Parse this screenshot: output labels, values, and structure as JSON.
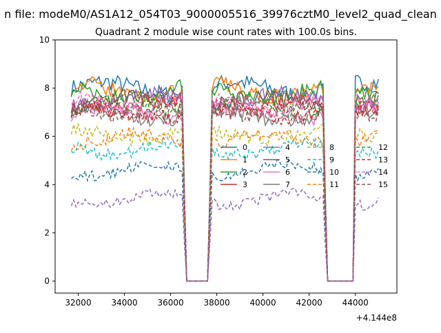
{
  "chart_data": {
    "type": "line",
    "suptitle": "n file: modeM0/AS1A12_054T03_9000005516_39976cztM0_level2_quad_clean",
    "title": "Quadrant 2 module wise count rates with 100.0s bins.",
    "xlabel": "",
    "ylabel": "",
    "x_offset_label": "+4.144e8",
    "xlim": [
      31000,
      45800
    ],
    "ylim": [
      -0.5,
      10
    ],
    "x_ticks": [
      32000,
      34000,
      36000,
      38000,
      40000,
      42000,
      44000
    ],
    "x_tick_labels": [
      "32000",
      "34000",
      "36000",
      "38000",
      "40000",
      "42000",
      "44000"
    ],
    "y_ticks": [
      0,
      2,
      4,
      6,
      8,
      10
    ],
    "y_tick_labels": [
      "0",
      "2",
      "4",
      "6",
      "8",
      "10"
    ],
    "grid": false,
    "legend": {
      "placement": "center-right",
      "columns": 4
    },
    "x_start": 31700,
    "bin_width": 100,
    "segments": [
      [
        31700,
        36500
      ],
      [
        37800,
        42600
      ],
      [
        44000,
        45000
      ]
    ],
    "gaps": [
      [
        36700,
        37600
      ],
      [
        42800,
        43900
      ]
    ],
    "series": [
      {
        "name": "0",
        "color": "#1f77b4",
        "dash": "solid",
        "level": 8.0
      },
      {
        "name": "1",
        "color": "#ff7f0e",
        "dash": "solid",
        "level": 7.9
      },
      {
        "name": "2",
        "color": "#2ca02c",
        "dash": "solid",
        "level": 7.8
      },
      {
        "name": "3",
        "color": "#d62728",
        "dash": "solid",
        "level": 7.3
      },
      {
        "name": "4",
        "color": "#9467bd",
        "dash": "solid",
        "level": 7.5
      },
      {
        "name": "5",
        "color": "#8c564b",
        "dash": "solid",
        "level": 7.4
      },
      {
        "name": "6",
        "color": "#e377c2",
        "dash": "solid",
        "level": 7.0
      },
      {
        "name": "7",
        "color": "#7f7f7f",
        "dash": "solid",
        "level": 6.9
      },
      {
        "name": "8",
        "color": "#bcbd22",
        "dash": "dashed",
        "level": 6.1
      },
      {
        "name": "9",
        "color": "#17becf",
        "dash": "dashed",
        "level": 5.5
      },
      {
        "name": "10",
        "color": "#1f77b4",
        "dash": "dashed",
        "level": 4.6
      },
      {
        "name": "11",
        "color": "#ff7f0e",
        "dash": "dashed",
        "level": 5.9
      },
      {
        "name": "12",
        "color": "#2ca02c",
        "dash": "dashed",
        "level": 7.2
      },
      {
        "name": "13",
        "color": "#d62728",
        "dash": "dashed",
        "level": 7.0
      },
      {
        "name": "14",
        "color": "#e377c2",
        "dash": "dashed",
        "level": 7.4
      },
      {
        "name": "15",
        "color": "#8c564b",
        "dash": "dashed",
        "level": 7.1
      },
      {
        "name": "",
        "color": "#9467bd",
        "dash": "dashed",
        "level": 3.4
      }
    ]
  }
}
